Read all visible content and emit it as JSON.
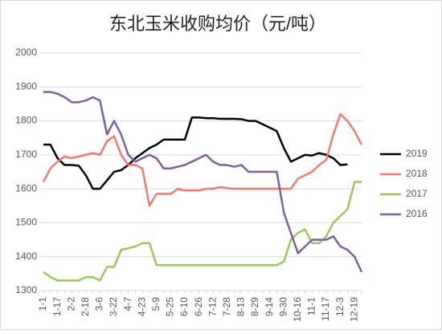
{
  "chart_data": {
    "type": "line",
    "title": "东北玉米收购均价（元/吨）",
    "categories": [
      "1-1",
      null,
      "1-17",
      null,
      "2-2",
      null,
      "2-18",
      null,
      "3-6",
      null,
      "3-22",
      null,
      "4-7",
      null,
      "4-23",
      null,
      "5-9",
      null,
      "5-25",
      null,
      "6-10",
      null,
      "6-26",
      null,
      "7-12",
      null,
      "7-28",
      null,
      "8-13",
      null,
      "8-29",
      null,
      "9-14",
      null,
      "9-30",
      null,
      "10-16",
      null,
      "11-1",
      null,
      "11-17",
      null,
      "12-3",
      null,
      "12-19",
      null
    ],
    "ylim": [
      1300,
      2000
    ],
    "yticks": [
      1300,
      1400,
      1500,
      1600,
      1700,
      1800,
      1900,
      2000
    ],
    "grid": true,
    "series": [
      {
        "name": "2019",
        "color": "#000000",
        "values": [
          1730,
          1730,
          1690,
          1670,
          1670,
          1668,
          1640,
          1600,
          1600,
          1625,
          1650,
          1655,
          1670,
          1690,
          1705,
          1720,
          1730,
          1745,
          1745,
          1745,
          1745,
          1810,
          1810,
          1808,
          1808,
          1806,
          1806,
          1806,
          1805,
          1800,
          1800,
          1790,
          1780,
          1770,
          1720,
          1680,
          1690,
          1700,
          1698,
          1705,
          1700,
          1690,
          1670,
          1672,
          null,
          null
        ]
      },
      {
        "name": "2018",
        "color": "#f4786b",
        "values": [
          1620,
          1660,
          1680,
          1695,
          1690,
          1695,
          1700,
          1705,
          1700,
          1740,
          1755,
          1700,
          1670,
          1670,
          1660,
          1550,
          1585,
          1585,
          1585,
          1600,
          1595,
          1595,
          1595,
          1600,
          1600,
          1605,
          1602,
          1600,
          1600,
          1600,
          1600,
          1600,
          1600,
          1600,
          1600,
          1600,
          1630,
          1640,
          1650,
          1670,
          1685,
          1760,
          1820,
          1800,
          1770,
          1730
        ]
      },
      {
        "name": "2017",
        "color": "#9bc85a",
        "values": [
          1355,
          1340,
          1330,
          1330,
          1330,
          1330,
          1340,
          1340,
          1330,
          1370,
          1370,
          1420,
          1425,
          1430,
          1440,
          1440,
          1375,
          1375,
          1375,
          1375,
          1375,
          1375,
          1375,
          1375,
          1375,
          1375,
          1375,
          1375,
          1375,
          1375,
          1375,
          1375,
          1375,
          1375,
          1385,
          1450,
          1470,
          1480,
          1440,
          1440,
          1460,
          1500,
          1520,
          1540,
          1620,
          1620
        ]
      },
      {
        "name": "2016",
        "color": "#7d5fa0",
        "values": [
          1885,
          1885,
          1880,
          1870,
          1855,
          1855,
          1860,
          1870,
          1860,
          1760,
          1800,
          1760,
          1700,
          1680,
          1690,
          1700,
          1690,
          1660,
          1660,
          1665,
          1670,
          1680,
          1690,
          1700,
          1680,
          1670,
          1670,
          1665,
          1670,
          1650,
          1650,
          1650,
          1650,
          1650,
          1530,
          1470,
          1410,
          1430,
          1450,
          1450,
          1450,
          1460,
          1430,
          1420,
          1400,
          1355
        ]
      }
    ]
  }
}
